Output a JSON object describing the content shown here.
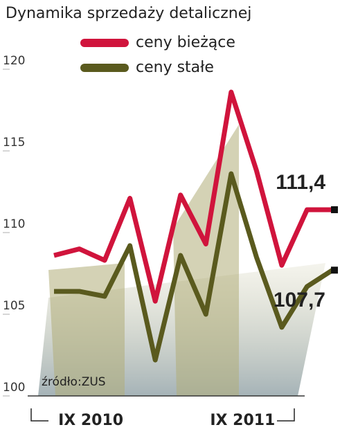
{
  "chart_data": {
    "type": "line",
    "title": "Dynamika sprzedaży detalicznej",
    "categories": [
      null,
      null,
      "IX 2010",
      null,
      null,
      null,
      null,
      null,
      "IX 2011",
      null,
      null,
      null
    ],
    "series": [
      {
        "name": "ceny bieżące",
        "color": "#d0143c",
        "values": [
          108.6,
          109.0,
          108.3,
          112.1,
          105.8,
          112.3,
          109.3,
          118.6,
          113.8,
          108.0,
          111.4,
          111.4
        ],
        "value_labels": [
          null,
          null,
          null,
          null,
          null,
          null,
          null,
          null,
          null,
          null,
          null,
          "111,4"
        ]
      },
      {
        "name": "ceny stałe",
        "color": "#5a5a1e",
        "values": [
          106.4,
          106.4,
          106.1,
          109.2,
          102.2,
          108.6,
          105.0,
          113.6,
          108.5,
          104.2,
          106.7,
          107.7
        ],
        "value_labels": [
          null,
          null,
          null,
          null,
          null,
          null,
          null,
          null,
          null,
          null,
          null,
          "107,7"
        ]
      }
    ],
    "ylim": [
      100,
      120
    ],
    "yticks": [
      100,
      105,
      110,
      115,
      120
    ],
    "annotation": "źródło:ZUS"
  }
}
